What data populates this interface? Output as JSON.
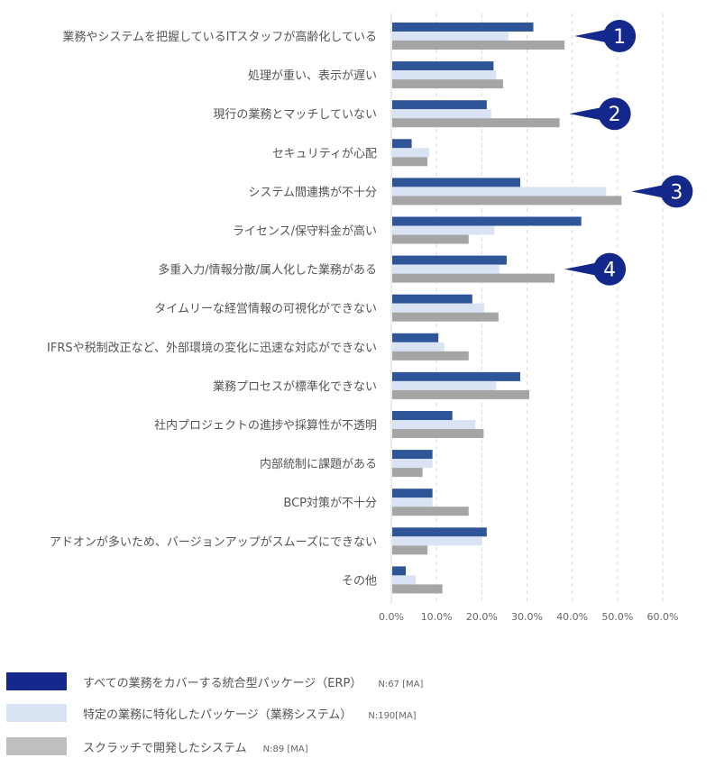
{
  "chart_data": {
    "type": "bar",
    "orientation": "horizontal",
    "title": "",
    "xlabel": "",
    "ylabel": "",
    "xlim": [
      0,
      60
    ],
    "grid": true,
    "x_ticks": [
      "0.0%",
      "10.0%",
      "20.0%",
      "30.0%",
      "40.0%",
      "50.0%",
      "60.0%"
    ],
    "categories": [
      "業務やシステムを把握しているITスタッフが高齢化している",
      "処理が重い、表示が遅い",
      "現行の業務とマッチしていない",
      "セキュリティが心配",
      "システム間連携が不十分",
      "ライセンス/保守料金が高い",
      "多重入力/情報分散/属人化した業務がある",
      "タイムリーな経営情報の可視化ができない",
      "IFRSや税制改正など、外部環境の変化に迅速な対応ができない",
      "業務プロセスが標準化できない",
      "社内プロジェクトの進捗や採算性が不透明",
      "内部統制に課題がある",
      "BCP対策が不十分",
      "アドオンが多いため、バージョンアップがスムーズにできない",
      "その他"
    ],
    "series": [
      {
        "name": "すべての業務をカバーする統合型パッケージ（ERP）",
        "n": "N:67 [MA]",
        "color": "#2e5597",
        "legend_color": "#13288a",
        "values": [
          31.2,
          22.4,
          20.9,
          4.3,
          28.3,
          41.8,
          25.3,
          17.7,
          10.2,
          28.3,
          13.3,
          8.9,
          8.9,
          20.9,
          3.0
        ]
      },
      {
        "name": "特定の業務に特化したパッケージ（業務システム）",
        "n": "N:190[MA]",
        "color": "#dae3f3",
        "legend_color": "#dae3f3",
        "values": [
          25.7,
          23.0,
          21.9,
          8.2,
          47.3,
          22.6,
          23.7,
          20.3,
          11.5,
          23.0,
          18.4,
          8.9,
          8.9,
          19.9,
          5.2
        ]
      },
      {
        "name": "スクラッチで開発したシステム",
        "n": "N:89 [MA]",
        "color": "#a5a5a5",
        "legend_color": "#bfbfbf",
        "values": [
          38.1,
          24.5,
          37.0,
          7.8,
          50.7,
          16.9,
          35.9,
          23.5,
          16.9,
          30.3,
          20.2,
          6.7,
          16.9,
          7.8,
          11.1
        ]
      }
    ],
    "annotations": [
      {
        "label": "1",
        "category_index": 0
      },
      {
        "label": "2",
        "category_index": 2
      },
      {
        "label": "3",
        "category_index": 4
      },
      {
        "label": "4",
        "category_index": 6
      }
    ],
    "callout_color": "#13288a"
  }
}
